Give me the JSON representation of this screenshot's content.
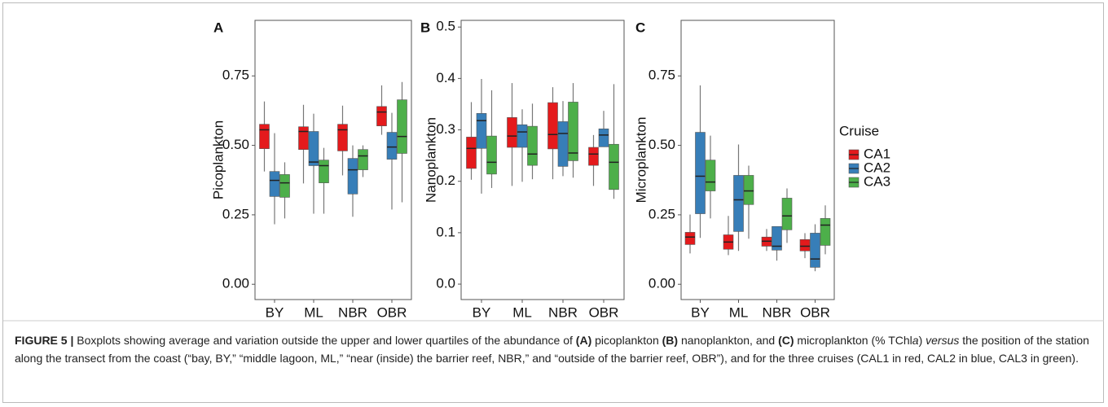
{
  "chart_data": [
    {
      "type": "box",
      "panel": "A",
      "ylabel": "Picoplankton",
      "categories": [
        "BY",
        "ML",
        "NBR",
        "OBR"
      ],
      "ylim": [
        -0.055,
        0.95
      ],
      "yticks": [
        {
          "value": 0,
          "label": "0.00"
        },
        0.25,
        {
          "value": 0.5,
          "label": "0.50"
        },
        0.75
      ],
      "series": [
        {
          "values": [
            {
              "min": 0.406,
              "q1": 0.488,
              "median": 0.556,
              "q3": 0.576,
              "max": 0.658
            },
            {
              "min": 0.363,
              "q1": 0.485,
              "median": 0.55,
              "q3": 0.567,
              "max": 0.646
            },
            {
              "min": 0.392,
              "q1": 0.48,
              "median": 0.556,
              "q3": 0.576,
              "max": 0.643
            },
            {
              "min": 0.538,
              "q1": 0.57,
              "median": 0.62,
              "q3": 0.64,
              "max": 0.716
            }
          ]
        },
        {
          "values": [
            {
              "min": 0.216,
              "q1": 0.316,
              "median": 0.374,
              "q3": 0.406,
              "max": 0.544
            },
            {
              "min": 0.254,
              "q1": 0.427,
              "median": 0.44,
              "q3": 0.55,
              "max": 0.614
            },
            {
              "min": 0.243,
              "q1": 0.325,
              "median": 0.412,
              "q3": 0.453,
              "max": 0.5
            },
            {
              "min": 0.269,
              "q1": 0.45,
              "median": 0.494,
              "q3": 0.547,
              "max": 0.617
            }
          ]
        },
        {
          "values": [
            {
              "min": 0.237,
              "q1": 0.313,
              "median": 0.365,
              "q3": 0.395,
              "max": 0.439
            },
            {
              "min": 0.254,
              "q1": 0.365,
              "median": 0.427,
              "q3": 0.447,
              "max": 0.491
            },
            {
              "min": 0.386,
              "q1": 0.412,
              "median": 0.462,
              "q3": 0.485,
              "max": 0.5
            },
            {
              "min": 0.295,
              "q1": 0.471,
              "median": 0.532,
              "q3": 0.664,
              "max": 0.728
            }
          ]
        }
      ]
    },
    {
      "type": "box",
      "panel": "B",
      "ylabel": "Nanoplankton",
      "categories": [
        "BY",
        "ML",
        "NBR",
        "OBR"
      ],
      "ylim": [
        -0.03,
        0.513
      ],
      "yticks": [
        {
          "value": 0,
          "label": "0.0"
        },
        0.1,
        0.2,
        0.3,
        0.4,
        0.5
      ],
      "series": [
        {
          "values": [
            {
              "min": 0.203,
              "q1": 0.225,
              "median": 0.264,
              "q3": 0.286,
              "max": 0.354
            },
            {
              "min": 0.191,
              "q1": 0.266,
              "median": 0.288,
              "q3": 0.324,
              "max": 0.391
            },
            {
              "min": 0.204,
              "q1": 0.263,
              "median": 0.291,
              "q3": 0.353,
              "max": 0.383
            },
            {
              "min": 0.191,
              "q1": 0.231,
              "median": 0.253,
              "q3": 0.266,
              "max": 0.29
            }
          ]
        },
        {
          "values": [
            {
              "min": 0.176,
              "q1": 0.264,
              "median": 0.318,
              "q3": 0.332,
              "max": 0.399
            },
            {
              "min": 0.199,
              "q1": 0.266,
              "median": 0.296,
              "q3": 0.31,
              "max": 0.34
            },
            {
              "min": 0.21,
              "q1": 0.229,
              "median": 0.293,
              "q3": 0.316,
              "max": 0.356
            },
            {
              "min": 0.267,
              "q1": 0.267,
              "median": 0.29,
              "q3": 0.302,
              "max": 0.337
            }
          ]
        },
        {
          "values": [
            {
              "min": 0.187,
              "q1": 0.214,
              "median": 0.237,
              "q3": 0.288,
              "max": 0.377
            },
            {
              "min": 0.204,
              "q1": 0.231,
              "median": 0.253,
              "q3": 0.307,
              "max": 0.351
            },
            {
              "min": 0.207,
              "q1": 0.24,
              "median": 0.255,
              "q3": 0.354,
              "max": 0.391
            },
            {
              "min": 0.166,
              "q1": 0.184,
              "median": 0.237,
              "q3": 0.272,
              "max": 0.389
            }
          ]
        }
      ]
    },
    {
      "type": "box",
      "panel": "C",
      "ylabel": "Microplankton",
      "categories": [
        "BY",
        "ML",
        "NBR",
        "OBR"
      ],
      "ylim": [
        -0.055,
        0.95
      ],
      "yticks": [
        {
          "value": 0,
          "label": "0.00"
        },
        0.25,
        {
          "value": 0.5,
          "label": "0.50"
        },
        0.75
      ],
      "series": [
        {
          "values": [
            {
              "min": 0.111,
              "q1": 0.143,
              "median": 0.17,
              "q3": 0.187,
              "max": 0.251
            },
            {
              "min": 0.105,
              "q1": 0.126,
              "median": 0.152,
              "q3": 0.178,
              "max": 0.246
            },
            {
              "min": 0.12,
              "q1": 0.137,
              "median": 0.155,
              "q3": 0.17,
              "max": 0.199
            },
            {
              "min": 0.094,
              "q1": 0.12,
              "median": 0.137,
              "q3": 0.161,
              "max": 0.184
            }
          ]
        },
        {
          "values": [
            {
              "min": 0.167,
              "q1": 0.254,
              "median": 0.389,
              "q3": 0.547,
              "max": 0.716
            },
            {
              "min": 0.12,
              "q1": 0.19,
              "median": 0.304,
              "q3": 0.392,
              "max": 0.503
            },
            {
              "min": 0.085,
              "q1": 0.123,
              "median": 0.137,
              "q3": 0.208,
              "max": 0.208
            },
            {
              "min": 0.047,
              "q1": 0.061,
              "median": 0.091,
              "q3": 0.184,
              "max": 0.216
            }
          ]
        },
        {
          "values": [
            {
              "min": 0.237,
              "q1": 0.336,
              "median": 0.368,
              "q3": 0.447,
              "max": 0.535
            },
            {
              "min": 0.164,
              "q1": 0.287,
              "median": 0.336,
              "q3": 0.392,
              "max": 0.427
            },
            {
              "min": 0.149,
              "q1": 0.196,
              "median": 0.246,
              "q3": 0.31,
              "max": 0.345
            },
            {
              "min": 0.108,
              "q1": 0.14,
              "median": 0.213,
              "q3": 0.237,
              "max": 0.284
            }
          ]
        }
      ]
    }
  ],
  "legend": {
    "title": "Cruise",
    "entries": [
      {
        "name": "CA1",
        "color": "#e41a1c"
      },
      {
        "name": "CA2",
        "color": "#377eb8"
      },
      {
        "name": "CA3",
        "color": "#4daf4a"
      }
    ]
  },
  "caption": [
    {
      "text": "FIGURE 5 |",
      "style": "bold"
    },
    {
      "text": " Boxplots showing average and variation outside the upper and lower quartiles of the abundance of ",
      "style": "normal"
    },
    {
      "text": "(A)",
      "style": "bold"
    },
    {
      "text": " picoplankton ",
      "style": "normal"
    },
    {
      "text": "(B)",
      "style": "bold"
    },
    {
      "text": " nanoplankton, and ",
      "style": "normal"
    },
    {
      "text": "(C)",
      "style": "bold"
    },
    {
      "text": " microplankton (% TChl",
      "style": "normal"
    },
    {
      "text": "a",
      "style": "italic"
    },
    {
      "text": ") ",
      "style": "normal"
    },
    {
      "text": "versus",
      "style": "italic"
    },
    {
      "text": " the position of the station along the transect from the coast (“bay, BY,” “middle lagoon, ML,” “near (inside) the barrier reef, NBR,” and “outside of the barrier reef, OBR”), and for the three cruises (CAL1 in red, CAL2 in blue, CAL3 in green).",
      "style": "normal"
    }
  ]
}
